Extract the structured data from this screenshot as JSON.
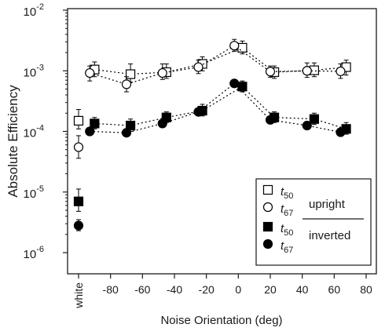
{
  "chart_data": {
    "type": "scatter",
    "title": "",
    "xlabel": "Noise Orientation (deg)",
    "ylabel": "Absolute Efficiency",
    "xlim": [
      -100,
      80
    ],
    "ylim": [
      1e-06,
      0.01
    ],
    "yscale": "log",
    "grid": false,
    "x_ticks": [
      {
        "value": -100,
        "label": "white"
      },
      {
        "value": -80,
        "label": "-80"
      },
      {
        "value": -60,
        "label": "-60"
      },
      {
        "value": -40,
        "label": "-40"
      },
      {
        "value": -20,
        "label": "-20"
      },
      {
        "value": 0,
        "label": "0"
      },
      {
        "value": 20,
        "label": "20"
      },
      {
        "value": 40,
        "label": "40"
      },
      {
        "value": 60,
        "label": "60"
      },
      {
        "value": 80,
        "label": "80"
      }
    ],
    "y_ticks": [
      {
        "value": 1e-06,
        "base": "10",
        "exp": "-6"
      },
      {
        "value": 1e-05,
        "base": "10",
        "exp": "-5"
      },
      {
        "value": 0.0001,
        "base": "10",
        "exp": "-4"
      },
      {
        "value": 0.001,
        "base": "10",
        "exp": "-3"
      },
      {
        "value": 0.01,
        "base": "10",
        "exp": "-2"
      }
    ],
    "legend": {
      "placement": "bottom-right",
      "entries": [
        {
          "symbol": "t",
          "subscript": "50",
          "marker": "square",
          "filled": false
        },
        {
          "symbol": "t",
          "subscript": "67",
          "marker": "circle",
          "filled": false
        },
        {
          "symbol": "t",
          "subscript": "50",
          "marker": "square",
          "filled": true
        },
        {
          "symbol": "t",
          "subscript": "67",
          "marker": "circle",
          "filled": true
        }
      ],
      "group_labels": [
        "upright",
        "inverted"
      ]
    },
    "series": [
      {
        "marker": "square",
        "filled": false,
        "connected": true,
        "points": [
          {
            "x": 2.5,
            "y": 0.0024,
            "lo": 0.0019,
            "hi": 0.0031
          },
          {
            "x": 22.5,
            "y": 0.00095,
            "lo": 0.00075,
            "hi": 0.0012
          },
          {
            "x": 47.5,
            "y": 0.00102,
            "lo": 0.0008,
            "hi": 0.00135
          },
          {
            "x": 67.5,
            "y": 0.00115,
            "lo": 0.00085,
            "hi": 0.0015
          },
          {
            "x": -22.5,
            "y": 0.0013,
            "lo": 0.001,
            "hi": 0.0017
          },
          {
            "x": -45,
            "y": 0.00095,
            "lo": 0.00075,
            "hi": 0.0013
          },
          {
            "x": -67.5,
            "y": 0.00088,
            "lo": 0.00065,
            "hi": 0.0013
          },
          {
            "x": -90,
            "y": 0.00105,
            "lo": 0.0008,
            "hi": 0.0014
          }
        ]
      },
      {
        "marker": "circle",
        "filled": false,
        "connected": true,
        "points": [
          {
            "x": -2.5,
            "y": 0.0026,
            "lo": 0.0021,
            "hi": 0.0033
          },
          {
            "x": 20,
            "y": 0.00097,
            "lo": 0.00078,
            "hi": 0.0012
          },
          {
            "x": 43,
            "y": 0.001,
            "lo": 0.00078,
            "hi": 0.00135
          },
          {
            "x": 64,
            "y": 0.00098,
            "lo": 0.00075,
            "hi": 0.0013
          },
          {
            "x": -25,
            "y": 0.00115,
            "lo": 0.0009,
            "hi": 0.0015
          },
          {
            "x": -47.5,
            "y": 0.00092,
            "lo": 0.00072,
            "hi": 0.0013
          },
          {
            "x": -70,
            "y": 0.0006,
            "lo": 0.00045,
            "hi": 0.0008
          },
          {
            "x": -93,
            "y": 0.00092,
            "lo": 0.00068,
            "hi": 0.0012
          }
        ]
      },
      {
        "marker": "square",
        "filled": true,
        "connected": true,
        "points": [
          {
            "x": 2.5,
            "y": 0.00055,
            "lo": 0.00045,
            "hi": 0.00068
          },
          {
            "x": 22.5,
            "y": 0.00017,
            "lo": 0.00014,
            "hi": 0.00021
          },
          {
            "x": 47.5,
            "y": 0.00016,
            "lo": 0.00013,
            "hi": 0.0002
          },
          {
            "x": 67.5,
            "y": 0.00011,
            "lo": 9e-05,
            "hi": 0.00014
          },
          {
            "x": -22.5,
            "y": 0.00022,
            "lo": 0.00018,
            "hi": 0.00028
          },
          {
            "x": -45,
            "y": 0.00017,
            "lo": 0.00014,
            "hi": 0.00021
          },
          {
            "x": -67.5,
            "y": 0.000125,
            "lo": 0.0001,
            "hi": 0.00016
          },
          {
            "x": -90,
            "y": 0.000135,
            "lo": 0.00011,
            "hi": 0.00017
          }
        ]
      },
      {
        "marker": "circle",
        "filled": true,
        "connected": true,
        "points": [
          {
            "x": -2.5,
            "y": 0.00062
          },
          {
            "x": 20,
            "y": 0.000155
          },
          {
            "x": 43,
            "y": 0.000125
          },
          {
            "x": 64,
            "y": 9.7e-05
          },
          {
            "x": -25,
            "y": 0.00021
          },
          {
            "x": -47.5,
            "y": 0.000135
          },
          {
            "x": -70,
            "y": 9.5e-05
          },
          {
            "x": -93,
            "y": 0.0001
          }
        ]
      },
      {
        "marker": "square",
        "filled": false,
        "connected": false,
        "points": [
          {
            "x": -100,
            "y": 0.00015,
            "lo": 0.00011,
            "hi": 0.00023
          }
        ]
      },
      {
        "marker": "circle",
        "filled": false,
        "connected": false,
        "points": [
          {
            "x": -100,
            "y": 5.5e-05,
            "lo": 3.6e-05,
            "hi": 8.5e-05
          }
        ]
      },
      {
        "marker": "square",
        "filled": true,
        "connected": false,
        "points": [
          {
            "x": -100,
            "y": 7e-06,
            "lo": 4.8e-06,
            "hi": 1.12e-05
          }
        ]
      },
      {
        "marker": "circle",
        "filled": true,
        "connected": false,
        "points": [
          {
            "x": -100,
            "y": 2.8e-06,
            "lo": 2.3e-06,
            "hi": 3.5e-06
          }
        ]
      }
    ]
  }
}
